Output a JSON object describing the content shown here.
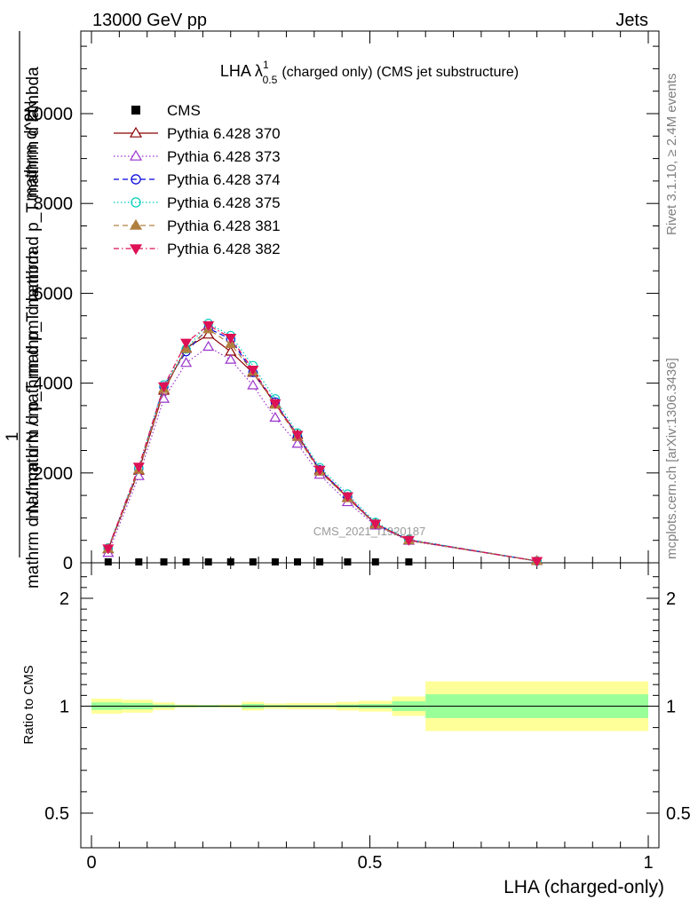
{
  "header": {
    "left": "13000 GeV pp",
    "right": "Jets"
  },
  "side_labels": {
    "rivet": "Rivet 3.1.10, ≥ 2.4M events",
    "mcplots": "mcplots.cern.ch [arXiv:1306.3436]"
  },
  "watermark": "CMS_2021_I1920187",
  "chart_data": {
    "type": "line",
    "title": "LHA λ¹₀.₅ (charged only) (CMS jet substructure)",
    "title_parts": {
      "lead": "LHA λ",
      "sup": "1",
      "sub": "0.5",
      "tail": "(charged only) (CMS jet substructure)"
    },
    "xlabel": "LHA (charged-only)",
    "ylabel": "mathrm d N / mathrm d p_T mathrm d lambda",
    "ylabel_num": "1",
    "ylabel_top": "mathrm d^2N",
    "ylabel_bottom": "mathrm d N / mathrm d p_T mathrm d p_T mathrm d lambda",
    "ylim": [
      0,
      12000
    ],
    "yticks": [
      0,
      2000,
      4000,
      6000,
      8000,
      10000
    ],
    "ytick_labels": [
      "0",
      "2000",
      "4000",
      "6000",
      "8000",
      "10000"
    ],
    "xlim": [
      -0.02,
      1.0
    ],
    "xticks": [
      0,
      0.5,
      1
    ],
    "xtick_labels": [
      "0",
      "0.5",
      "1"
    ],
    "x": [
      0.03,
      0.085,
      0.13,
      0.17,
      0.21,
      0.25,
      0.29,
      0.33,
      0.37,
      0.41,
      0.46,
      0.51,
      0.57,
      0.8
    ],
    "cms": [
      0,
      0,
      0,
      0,
      0,
      0,
      0,
      0,
      0,
      0,
      0,
      0,
      0,
      0
    ],
    "series": [
      {
        "name": "Pythia 6.428 370",
        "color": "#8b0000",
        "dash": "",
        "marker": "triangle-open",
        "values": [
          300,
          2050,
          3830,
          4780,
          5080,
          4700,
          4230,
          3540,
          2850,
          2060,
          1450,
          870,
          500,
          40
        ]
      },
      {
        "name": "Pythia 6.428 373",
        "color": "#9932cc",
        "dash": "1.5,2.5",
        "marker": "triangle-open",
        "values": [
          220,
          1930,
          3650,
          4450,
          4810,
          4520,
          3950,
          3230,
          2650,
          1960,
          1350,
          830,
          490,
          40
        ]
      },
      {
        "name": "Pythia 6.428 374",
        "color": "#0000dd",
        "dash": "6,4",
        "marker": "circle-open",
        "values": [
          320,
          2100,
          3920,
          4700,
          5220,
          4980,
          4240,
          3580,
          2820,
          2070,
          1470,
          860,
          510,
          40
        ]
      },
      {
        "name": "Pythia 6.428 375",
        "color": "#00ccbb",
        "dash": "1.5,2.5",
        "marker": "circle-open",
        "values": [
          330,
          2120,
          3960,
          4760,
          5330,
          5060,
          4390,
          3650,
          2890,
          2120,
          1530,
          900,
          520,
          40
        ]
      },
      {
        "name": "Pythia 6.428 381",
        "color": "#b08040",
        "dash": "6,4",
        "marker": "triangle-filled",
        "values": [
          310,
          2070,
          3870,
          4760,
          5200,
          4870,
          4250,
          3520,
          2800,
          2030,
          1440,
          850,
          500,
          40
        ]
      },
      {
        "name": "Pythia 6.428 382",
        "color": "#dd1155",
        "dash": "6,3,1.5,3",
        "marker": "triangle-down-filled",
        "values": [
          320,
          2140,
          3930,
          4900,
          5290,
          5010,
          4300,
          3550,
          2850,
          2070,
          1480,
          870,
          510,
          40
        ]
      }
    ],
    "legend": {
      "cms_label": "CMS",
      "placement": "top-left"
    },
    "ratio": {
      "ylabel": "Ratio to CMS",
      "ylim": [
        0.4,
        2.4
      ],
      "yticks": [
        0.5,
        1,
        2
      ],
      "ytick_labels": [
        "0.5",
        "1",
        "2"
      ],
      "bins": [
        {
          "x0": 0.0,
          "x1": 0.055,
          "stat": 0.035,
          "tot": 0.07
        },
        {
          "x0": 0.055,
          "x1": 0.11,
          "stat": 0.03,
          "tot": 0.06
        },
        {
          "x0": 0.11,
          "x1": 0.15,
          "stat": 0.015,
          "tot": 0.035
        },
        {
          "x0": 0.15,
          "x1": 0.19,
          "stat": 0.01,
          "tot": 0.015
        },
        {
          "x0": 0.19,
          "x1": 0.23,
          "stat": 0.01,
          "tot": 0.012
        },
        {
          "x0": 0.23,
          "x1": 0.27,
          "stat": 0.008,
          "tot": 0.015
        },
        {
          "x0": 0.27,
          "x1": 0.31,
          "stat": 0.02,
          "tot": 0.04
        },
        {
          "x0": 0.31,
          "x1": 0.35,
          "stat": 0.01,
          "tot": 0.025
        },
        {
          "x0": 0.35,
          "x1": 0.39,
          "stat": 0.01,
          "tot": 0.03
        },
        {
          "x0": 0.39,
          "x1": 0.44,
          "stat": 0.01,
          "tot": 0.03
        },
        {
          "x0": 0.44,
          "x1": 0.48,
          "stat": 0.015,
          "tot": 0.04
        },
        {
          "x0": 0.48,
          "x1": 0.54,
          "stat": 0.02,
          "tot": 0.05
        },
        {
          "x0": 0.54,
          "x1": 0.6,
          "stat": 0.045,
          "tot": 0.09
        },
        {
          "x0": 0.6,
          "x1": 1.0,
          "stat": 0.11,
          "tot": 0.23
        }
      ]
    }
  }
}
